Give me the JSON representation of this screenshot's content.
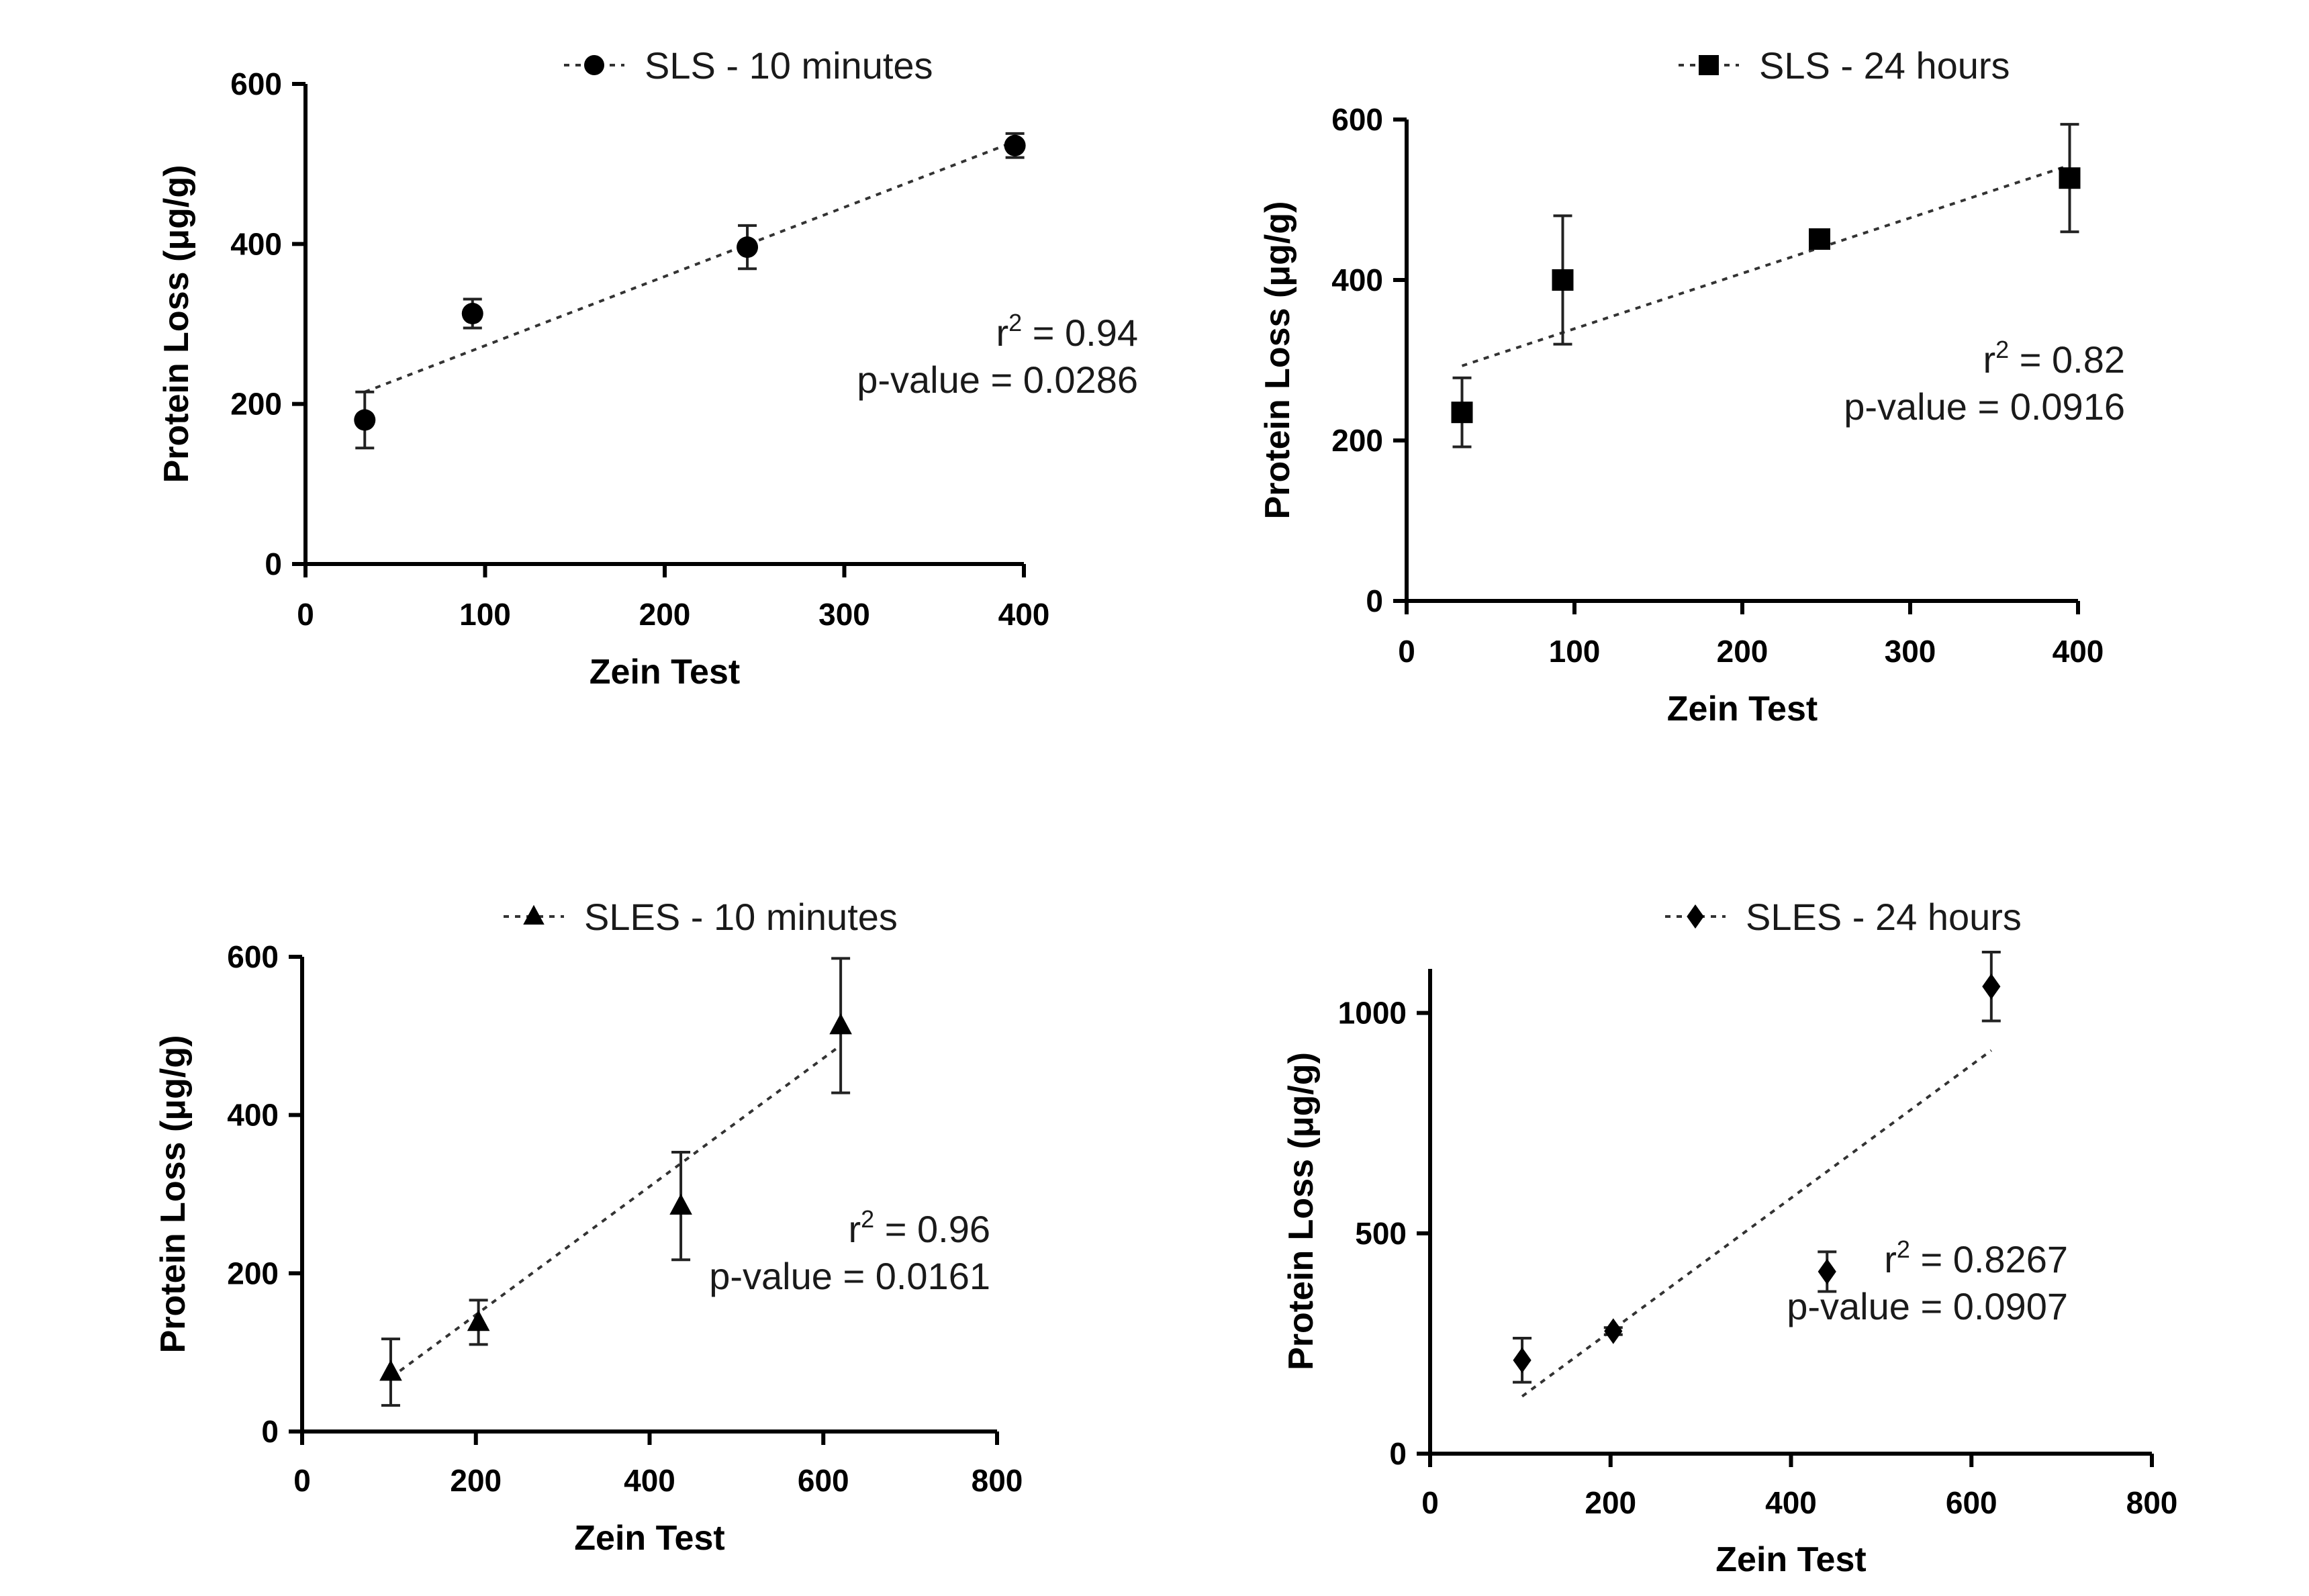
{
  "chart_data": [
    {
      "type": "scatter",
      "marker": "circle",
      "legend": "SLS - 10 minutes",
      "legend_position": "top-center",
      "xlabel": "Zein Test",
      "ylabel": "Protein Loss (μg/g)",
      "xlim": [
        0,
        400
      ],
      "ylim": [
        0,
        600
      ],
      "xticks": [
        0,
        100,
        200,
        300,
        400
      ],
      "yticks": [
        0,
        200,
        400,
        600
      ],
      "points": [
        {
          "x": 33,
          "y": 180,
          "err": 35
        },
        {
          "x": 93,
          "y": 313,
          "err": 18
        },
        {
          "x": 246,
          "y": 396,
          "err": 27
        },
        {
          "x": 395,
          "y": 523,
          "err": 15
        }
      ],
      "trendline": [
        [
          33,
          215
        ],
        [
          395,
          528
        ]
      ],
      "r2_label": "r",
      "r2_exp": "2",
      "r2_value": " = 0.94",
      "pvalue": "p-value = 0.0286"
    },
    {
      "type": "scatter",
      "marker": "square",
      "legend": "SLS - 24 hours",
      "legend_position": "top-center",
      "xlabel": "Zein Test",
      "ylabel": "Protein Loss (μg/g)",
      "xlim": [
        0,
        400
      ],
      "ylim": [
        0,
        600
      ],
      "xticks": [
        0,
        100,
        200,
        300,
        400
      ],
      "yticks": [
        0,
        200,
        400,
        600
      ],
      "points": [
        {
          "x": 33,
          "y": 235,
          "err": 43
        },
        {
          "x": 93,
          "y": 400,
          "err": 80
        },
        {
          "x": 246,
          "y": 451,
          "err": 8
        },
        {
          "x": 395,
          "y": 527,
          "err": 67
        }
      ],
      "trendline": [
        [
          33,
          293
        ],
        [
          395,
          543
        ]
      ],
      "r2_label": "r",
      "r2_exp": "2",
      "r2_value": " = 0.82",
      "pvalue": "p-value = 0.0916"
    },
    {
      "type": "scatter",
      "marker": "triangle",
      "legend": "SLES - 10 minutes",
      "legend_position": "top-center",
      "xlabel": "Zein Test",
      "ylabel": "Protein Loss (μg/g)",
      "xlim": [
        0,
        800
      ],
      "ylim": [
        0,
        600
      ],
      "xticks": [
        0,
        200,
        400,
        600,
        800
      ],
      "yticks": [
        0,
        200,
        400,
        600
      ],
      "points": [
        {
          "x": 102,
          "y": 75,
          "err": 42
        },
        {
          "x": 203,
          "y": 138,
          "err": 28
        },
        {
          "x": 436,
          "y": 285,
          "err": 68
        },
        {
          "x": 620,
          "y": 513,
          "err": 85
        }
      ],
      "trendline": [
        [
          102,
          68
        ],
        [
          620,
          488
        ]
      ],
      "r2_label": "r",
      "r2_exp": "2",
      "r2_value": " = 0.96",
      "pvalue": "p-value = 0.0161"
    },
    {
      "type": "scatter",
      "marker": "diamond",
      "legend": "SLES - 24 hours",
      "legend_position": "top-center",
      "xlabel": "Zein Test",
      "ylabel": "Protein Loss (μg/g)",
      "xlim": [
        0,
        800
      ],
      "ylim": [
        0,
        1100
      ],
      "xticks": [
        0,
        200,
        400,
        600,
        800
      ],
      "yticks": [
        0,
        500,
        1000
      ],
      "points": [
        {
          "x": 102,
          "y": 212,
          "err": 50
        },
        {
          "x": 203,
          "y": 278,
          "err": 8
        },
        {
          "x": 440,
          "y": 413,
          "err": 45
        },
        {
          "x": 622,
          "y": 1060,
          "err": 78
        }
      ],
      "trendline": [
        [
          102,
          130
        ],
        [
          622,
          915
        ]
      ],
      "r2_label": "r",
      "r2_exp": "2",
      "r2_value": " = 0.8267",
      "pvalue": "p-value = 0.0907"
    }
  ]
}
